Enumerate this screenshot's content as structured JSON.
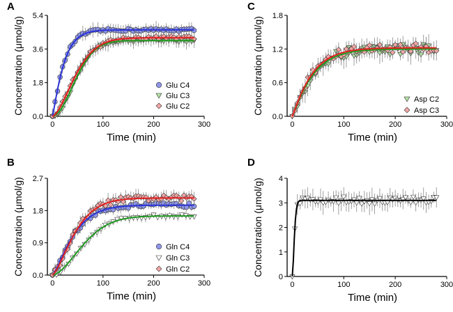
{
  "chart_data": [
    {
      "id": "A",
      "type": "scatter",
      "panel_label": "A",
      "xlabel": "Time (min)",
      "ylabel": "Concentration (μmol/g)",
      "xlim": [
        -10,
        300
      ],
      "ylim": [
        0,
        5.4
      ],
      "xticks": [
        0,
        100,
        200,
        300
      ],
      "yticks": [
        0.0,
        1.8,
        3.6,
        5.4
      ],
      "ytick_labels": [
        "0.0",
        "1.8",
        "3.6",
        "5.4"
      ],
      "legend_position": "bottom-right",
      "series": [
        {
          "name": "Glu C4",
          "marker": "circle",
          "fill": "#8f96e8",
          "line": "#2b33d6",
          "model": {
            "A": 4.62,
            "k": 0.042,
            "n": 1.15
          },
          "step": 5,
          "err": 0.3,
          "jitter": 0.08
        },
        {
          "name": "Glu C3",
          "marker": "triangle-down",
          "fill": "#b4e0a4",
          "line": "#1f9a1f",
          "model": {
            "A": 4.05,
            "k": 0.0175,
            "n": 1.9
          },
          "step": 5,
          "err": 0.3,
          "jitter": 0.08
        },
        {
          "name": "Glu C2",
          "marker": "diamond",
          "fill": "#f4a6a6",
          "line": "#e02020",
          "model": {
            "A": 4.2,
            "k": 0.018,
            "n": 1.6
          },
          "step": 5,
          "err": 0.3,
          "jitter": 0.1
        }
      ]
    },
    {
      "id": "B",
      "type": "scatter",
      "panel_label": "B",
      "xlabel": "Time (min)",
      "ylabel": "Concentration (μmol/g)",
      "xlim": [
        -10,
        300
      ],
      "ylim": [
        0,
        2.7
      ],
      "xticks": [
        0,
        100,
        200,
        300
      ],
      "yticks": [
        0.0,
        0.9,
        1.8,
        2.7
      ],
      "ytick_labels": [
        "0.0",
        "0.9",
        "1.8",
        "2.7"
      ],
      "legend_position": "bottom-right",
      "series": [
        {
          "name": "Gln C4",
          "marker": "circle",
          "fill": "#8f96e8",
          "line": "#2b33d6",
          "model": {
            "A": 1.95,
            "k": 0.021,
            "n": 1.3
          },
          "step": 5,
          "err": 0.12,
          "jitter": 0.06
        },
        {
          "name": "Gln C3",
          "marker": "triangle-down",
          "fill": "#ffffff",
          "line": "#1f9a1f",
          "model": {
            "A": 1.65,
            "k": 0.0135,
            "n": 1.7
          },
          "step": 8,
          "err": 0.1,
          "jitter": 0.04
        },
        {
          "name": "Gln C2",
          "marker": "diamond",
          "fill": "#f4a6a6",
          "line": "#e02020",
          "model": {
            "A": 2.15,
            "k": 0.019,
            "n": 1.4
          },
          "step": 5,
          "err": 0.15,
          "jitter": 0.08
        }
      ]
    },
    {
      "id": "C",
      "type": "scatter",
      "panel_label": "C",
      "xlabel": "Time (min)",
      "ylabel": "Concentration (μmol/g)",
      "xlim": [
        -10,
        300
      ],
      "ylim": [
        0,
        1.8
      ],
      "xticks": [
        0,
        100,
        200,
        300
      ],
      "yticks": [
        0.0,
        0.6,
        1.2,
        1.8
      ],
      "ytick_labels": [
        "0.0",
        "0.6",
        "1.2",
        "1.8"
      ],
      "legend_position": "bottom-right",
      "series": [
        {
          "name": "Asp C2",
          "marker": "triangle-down",
          "fill": "#b4e0a4",
          "line": "#1f9a1f",
          "model": {
            "A": 1.2,
            "k": 0.024,
            "n": 1.1
          },
          "step": 5,
          "err": 0.15,
          "jitter": 0.1
        },
        {
          "name": "Asp C3",
          "marker": "diamond",
          "fill": "#f4a6a6",
          "line": "#e02020",
          "model": {
            "A": 1.22,
            "k": 0.025,
            "n": 1.1
          },
          "step": 5,
          "err": 0.12,
          "jitter": 0.08
        }
      ]
    },
    {
      "id": "D",
      "type": "scatter",
      "panel_label": "D",
      "xlabel": "Time (min)",
      "ylabel": "Concentration (μmol/g)",
      "xlim": [
        -10,
        300
      ],
      "ylim": [
        0,
        4
      ],
      "xticks": [
        0,
        100,
        200,
        300
      ],
      "yticks": [
        0,
        1,
        2,
        3,
        4
      ],
      "ytick_labels": [
        "0",
        "1",
        "2",
        "3",
        "4"
      ],
      "legend_position": "none",
      "series": [
        {
          "name": "",
          "marker": "triangle-down",
          "fill": "#ffffff",
          "line": "#000000",
          "model": {
            "A": 3.1,
            "k": 0.2,
            "n": 1.6
          },
          "step": 5,
          "err": 0.35,
          "jitter": 0.15
        }
      ]
    }
  ]
}
